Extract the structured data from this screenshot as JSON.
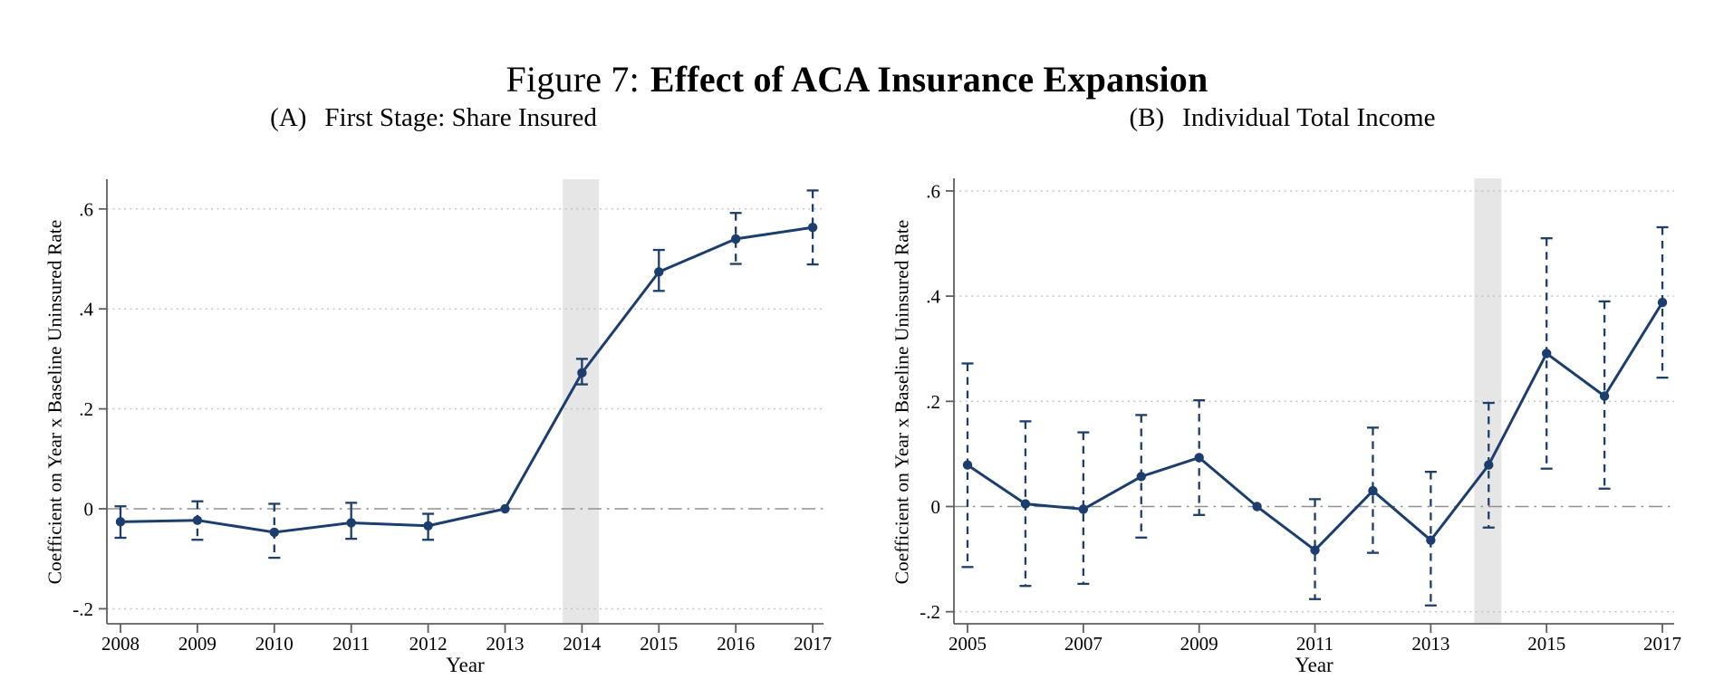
{
  "figure_title": {
    "prefix": "Figure 7:",
    "main": "Effect of ACA Insurance Expansion"
  },
  "colors": {
    "series": "#1c3e6e",
    "grid": "#bdbdbd",
    "zero_line": "#909090",
    "axis": "#5f5f5f",
    "band": "#e6e6e6",
    "background": "#ffffff"
  },
  "chart_data": [
    {
      "id": "panel-a",
      "type": "line",
      "panel_tag": "(A)",
      "title": "First Stage: Share Insured",
      "xlabel": "Year",
      "ylabel": "Coefficient on Year x Baseline Uninsured Rate",
      "ylim": [
        -0.23,
        0.66
      ],
      "xlim": [
        2007.8,
        2017.15
      ],
      "grid": true,
      "legend": "none",
      "shaded_band_years": [
        2013.75,
        2014.22
      ],
      "reference_year": 2013,
      "yticks": [
        {
          "value": 0.6,
          "label": ".6"
        },
        {
          "value": 0.4,
          "label": ".4"
        },
        {
          "value": 0.2,
          "label": ".2"
        },
        {
          "value": 0.0,
          "label": "0"
        },
        {
          "value": -0.2,
          "label": "-.2"
        }
      ],
      "xticks": [
        {
          "year": 2008,
          "label": "2008"
        },
        {
          "year": 2009,
          "label": "2009"
        },
        {
          "year": 2010,
          "label": "2010"
        },
        {
          "year": 2011,
          "label": "2011"
        },
        {
          "year": 2012,
          "label": "2012"
        },
        {
          "year": 2013,
          "label": "2013"
        },
        {
          "year": 2014,
          "label": "2014"
        },
        {
          "year": 2015,
          "label": "2015"
        },
        {
          "year": 2016,
          "label": "2016"
        },
        {
          "year": 2017,
          "label": "2017"
        }
      ],
      "points": [
        {
          "year": 2008,
          "value": -0.026,
          "ci": [
            -0.058,
            0.005
          ],
          "ci_style": "solid"
        },
        {
          "year": 2009,
          "value": -0.023,
          "ci": [
            -0.062,
            0.015
          ],
          "ci_style": "dashed"
        },
        {
          "year": 2010,
          "value": -0.047,
          "ci": [
            -0.098,
            0.01
          ],
          "ci_style": "dashed"
        },
        {
          "year": 2011,
          "value": -0.028,
          "ci": [
            -0.06,
            0.012
          ],
          "ci_style": "solid"
        },
        {
          "year": 2012,
          "value": -0.034,
          "ci": [
            -0.062,
            -0.01
          ],
          "ci_style": "solid"
        },
        {
          "year": 2013,
          "value": 0.0,
          "ci": null,
          "ci_style": null
        },
        {
          "year": 2014,
          "value": 0.272,
          "ci": [
            0.249,
            0.3
          ],
          "ci_style": "solid"
        },
        {
          "year": 2015,
          "value": 0.474,
          "ci": [
            0.436,
            0.518
          ],
          "ci_style": "solid"
        },
        {
          "year": 2016,
          "value": 0.54,
          "ci": [
            0.49,
            0.592
          ],
          "ci_style": "dashed"
        },
        {
          "year": 2017,
          "value": 0.563,
          "ci": [
            0.489,
            0.637
          ],
          "ci_style": "dashed"
        }
      ]
    },
    {
      "id": "panel-b",
      "type": "line",
      "panel_tag": "(B)",
      "title": "Individual Total Income",
      "xlabel": "Year",
      "ylabel": "Coefficient on Year x Baseline Uninsured Rate",
      "ylim": [
        -0.23,
        0.63
      ],
      "xlim": [
        2004.8,
        2017.2
      ],
      "grid": true,
      "legend": "none",
      "shaded_band_years": [
        2013.75,
        2014.22
      ],
      "reference_year": 2010,
      "yticks": [
        {
          "value": 0.6,
          "label": ".6"
        },
        {
          "value": 0.4,
          "label": ".4"
        },
        {
          "value": 0.2,
          "label": ".2"
        },
        {
          "value": 0.0,
          "label": "0"
        },
        {
          "value": -0.2,
          "label": "-.2"
        }
      ],
      "xticks": [
        {
          "year": 2005,
          "label": "2005"
        },
        {
          "year": 2007,
          "label": "2007"
        },
        {
          "year": 2009,
          "label": "2009"
        },
        {
          "year": 2011,
          "label": "2011"
        },
        {
          "year": 2013,
          "label": "2013"
        },
        {
          "year": 2015,
          "label": "2015"
        },
        {
          "year": 2017,
          "label": "2017"
        }
      ],
      "points": [
        {
          "year": 2005,
          "value": 0.079,
          "ci": [
            -0.115,
            0.272
          ],
          "ci_style": "dashed"
        },
        {
          "year": 2006,
          "value": 0.005,
          "ci": [
            -0.151,
            0.162
          ],
          "ci_style": "dashed"
        },
        {
          "year": 2007,
          "value": -0.005,
          "ci": [
            -0.147,
            0.141
          ],
          "ci_style": "dashed"
        },
        {
          "year": 2008,
          "value": 0.057,
          "ci": [
            -0.059,
            0.174
          ],
          "ci_style": "dashed"
        },
        {
          "year": 2009,
          "value": 0.093,
          "ci": [
            -0.016,
            0.202
          ],
          "ci_style": "dashed"
        },
        {
          "year": 2010,
          "value": 0.0,
          "ci": null,
          "ci_style": null
        },
        {
          "year": 2011,
          "value": -0.083,
          "ci": [
            -0.176,
            0.014
          ],
          "ci_style": "dashed"
        },
        {
          "year": 2012,
          "value": 0.03,
          "ci": [
            -0.088,
            0.15
          ],
          "ci_style": "dashed"
        },
        {
          "year": 2013,
          "value": -0.064,
          "ci": [
            -0.188,
            0.066
          ],
          "ci_style": "dashed"
        },
        {
          "year": 2014,
          "value": 0.079,
          "ci": [
            -0.04,
            0.197
          ],
          "ci_style": "dashed"
        },
        {
          "year": 2015,
          "value": 0.291,
          "ci": [
            0.072,
            0.51
          ],
          "ci_style": "dashed"
        },
        {
          "year": 2016,
          "value": 0.21,
          "ci": [
            0.034,
            0.39
          ],
          "ci_style": "dashed"
        },
        {
          "year": 2017,
          "value": 0.388,
          "ci": [
            0.245,
            0.531
          ],
          "ci_style": "dashed"
        }
      ]
    }
  ]
}
